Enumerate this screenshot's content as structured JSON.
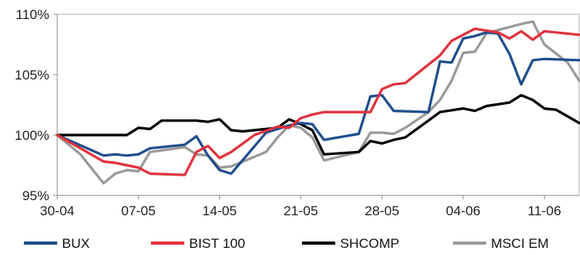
{
  "chart_data": {
    "type": "line",
    "title": "",
    "xlabel": "",
    "ylabel": "",
    "ylim": [
      95,
      110
    ],
    "yticks": [
      95,
      100,
      105,
      110
    ],
    "ytick_labels": [
      "95%",
      "100%",
      "105%",
      "110%"
    ],
    "x_range": [
      0,
      45
    ],
    "xticks": [
      0,
      7,
      14,
      21,
      28,
      35,
      42
    ],
    "xtick_labels": [
      "30-04",
      "07-05",
      "14-05",
      "21-05",
      "28-05",
      "04-06",
      "11-06"
    ],
    "grid": false,
    "legend_position": "bottom",
    "series": [
      {
        "name": "BUX",
        "color": "#1f4e8c",
        "points": [
          [
            0,
            100.0
          ],
          [
            4,
            98.3
          ],
          [
            5,
            98.4
          ],
          [
            6,
            98.3
          ],
          [
            7,
            98.4
          ],
          [
            8,
            98.9
          ],
          [
            11,
            99.2
          ],
          [
            12,
            99.9
          ],
          [
            13,
            98.3
          ],
          [
            14,
            97.1
          ],
          [
            15,
            96.8
          ],
          [
            18,
            100.2
          ],
          [
            20,
            100.8
          ],
          [
            21,
            101.0
          ],
          [
            22,
            100.9
          ],
          [
            23,
            99.6
          ],
          [
            26,
            100.1
          ],
          [
            27,
            103.2
          ],
          [
            28,
            103.3
          ],
          [
            29,
            102.0
          ],
          [
            32,
            101.9
          ],
          [
            33,
            106.1
          ],
          [
            34,
            106.0
          ],
          [
            35,
            108.0
          ],
          [
            36,
            108.2
          ],
          [
            37,
            108.5
          ],
          [
            38,
            108.4
          ],
          [
            39,
            106.7
          ],
          [
            40,
            104.2
          ],
          [
            41,
            106.2
          ],
          [
            42,
            106.3
          ],
          [
            45,
            106.2
          ]
        ]
      },
      {
        "name": "BIST 100",
        "color": "#e0323c",
        "points": [
          [
            0,
            100.0
          ],
          [
            4,
            97.8
          ],
          [
            5,
            97.7
          ],
          [
            7,
            97.3
          ],
          [
            8,
            96.8
          ],
          [
            11,
            96.7
          ],
          [
            12,
            98.6
          ],
          [
            13,
            99.1
          ],
          [
            14,
            98.1
          ],
          [
            15,
            98.6
          ],
          [
            17,
            100.0
          ],
          [
            19,
            100.7
          ],
          [
            20,
            100.6
          ],
          [
            21,
            101.4
          ],
          [
            22,
            101.7
          ],
          [
            23,
            101.9
          ],
          [
            27,
            101.9
          ],
          [
            28,
            103.8
          ],
          [
            29,
            104.2
          ],
          [
            30,
            104.3
          ],
          [
            33,
            106.6
          ],
          [
            34,
            107.8
          ],
          [
            36,
            108.8
          ],
          [
            38,
            108.5
          ],
          [
            39,
            108.0
          ],
          [
            40,
            108.6
          ],
          [
            41,
            107.9
          ],
          [
            42,
            108.6
          ],
          [
            45,
            108.3
          ]
        ]
      },
      {
        "name": "SHCOMP",
        "color": "#000000",
        "points": [
          [
            0,
            100.0
          ],
          [
            6,
            100.0
          ],
          [
            7,
            100.6
          ],
          [
            8,
            100.5
          ],
          [
            9,
            101.2
          ],
          [
            12,
            101.2
          ],
          [
            13,
            101.1
          ],
          [
            14,
            101.3
          ],
          [
            15,
            100.4
          ],
          [
            16,
            100.3
          ],
          [
            19,
            100.6
          ],
          [
            20,
            101.3
          ],
          [
            21,
            100.9
          ],
          [
            22,
            100.4
          ],
          [
            23,
            98.4
          ],
          [
            26,
            98.6
          ],
          [
            27,
            99.5
          ],
          [
            28,
            99.3
          ],
          [
            29,
            99.6
          ],
          [
            30,
            99.8
          ],
          [
            32,
            101.2
          ],
          [
            33,
            101.9
          ],
          [
            35,
            102.2
          ],
          [
            36,
            102.0
          ],
          [
            37,
            102.4
          ],
          [
            39,
            102.7
          ],
          [
            40,
            103.3
          ],
          [
            41,
            102.9
          ],
          [
            42,
            102.2
          ],
          [
            43,
            102.1
          ],
          [
            45,
            101.0
          ]
        ]
      },
      {
        "name": "MSCI EM",
        "color": "#9a9a9a",
        "points": [
          [
            0,
            100.0
          ],
          [
            2,
            98.4
          ],
          [
            4,
            96.0
          ],
          [
            5,
            96.8
          ],
          [
            6,
            97.1
          ],
          [
            7,
            97.0
          ],
          [
            8,
            98.6
          ],
          [
            11,
            99.0
          ],
          [
            12,
            98.4
          ],
          [
            13,
            98.3
          ],
          [
            14,
            97.3
          ],
          [
            15,
            97.4
          ],
          [
            17,
            98.2
          ],
          [
            18,
            98.6
          ],
          [
            19,
            99.8
          ],
          [
            20,
            100.8
          ],
          [
            21,
            100.6
          ],
          [
            22,
            99.8
          ],
          [
            23,
            97.9
          ],
          [
            26,
            98.6
          ],
          [
            27,
            100.2
          ],
          [
            28,
            100.2
          ],
          [
            29,
            100.1
          ],
          [
            30,
            100.6
          ],
          [
            32,
            101.9
          ],
          [
            33,
            102.9
          ],
          [
            34,
            104.5
          ],
          [
            35,
            106.8
          ],
          [
            36,
            106.9
          ],
          [
            37,
            108.4
          ],
          [
            38,
            108.7
          ],
          [
            40,
            109.2
          ],
          [
            41,
            109.4
          ],
          [
            42,
            107.5
          ],
          [
            44,
            106.0
          ],
          [
            45,
            104.5
          ]
        ]
      }
    ]
  }
}
